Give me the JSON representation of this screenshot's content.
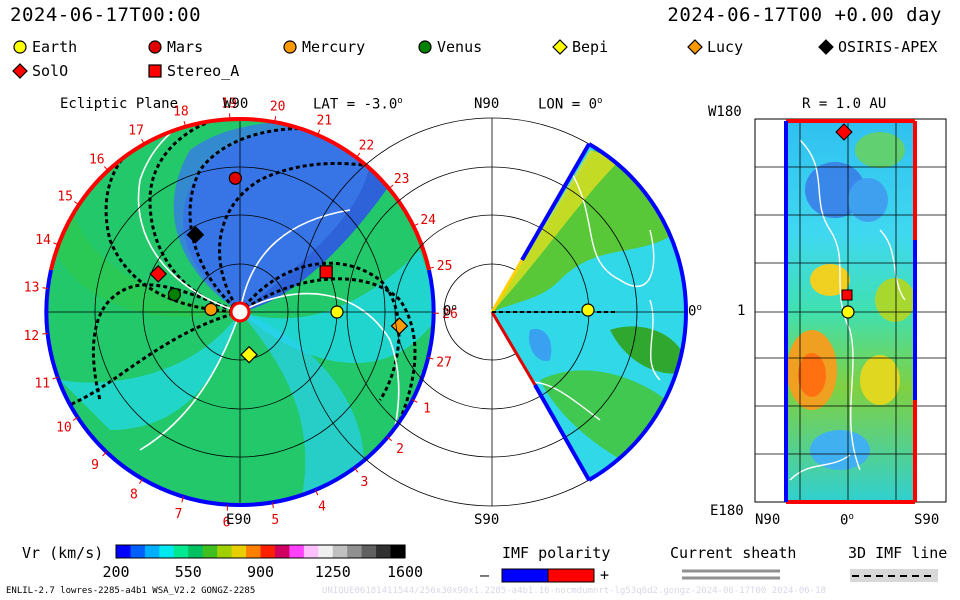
{
  "header": {
    "left_time": "2024-06-17T00:00",
    "right_time": "2024-06-17T00 +0.00 day"
  },
  "legend": {
    "items": [
      {
        "label": "Earth",
        "shape": "circle",
        "color": "#ffff00"
      },
      {
        "label": "Mars",
        "shape": "circle",
        "color": "#e00000"
      },
      {
        "label": "Mercury",
        "shape": "circle",
        "color": "#ff9900"
      },
      {
        "label": "Venus",
        "shape": "circle",
        "color": "#008000"
      },
      {
        "label": "Bepi",
        "shape": "diamond",
        "color": "#ffff00"
      },
      {
        "label": "Lucy",
        "shape": "diamond",
        "color": "#ff9900"
      },
      {
        "label": "OSIRIS-APEX",
        "shape": "diamond",
        "color": "#000000"
      },
      {
        "label": "SolO",
        "shape": "diamond",
        "color": "#ff0000"
      },
      {
        "label": "Stereo_A",
        "shape": "square",
        "color": "#ff0000"
      }
    ]
  },
  "panel_ecliptic": {
    "title": "Ecliptic Plane",
    "top_label": "W90",
    "bottom_label": "E90",
    "lat_label": "LAT = -3.0",
    "lat_degree": "o",
    "right_label": "0",
    "right_degree": "o"
  },
  "panel_meridional": {
    "top_label": "N90",
    "bottom_label": "S90",
    "lon_label": "LON = 0",
    "lon_degree": "o",
    "right_label": "0",
    "right_degree": "o"
  },
  "panel_latlon": {
    "r_label": "R = 1.0 AU",
    "top_left": "W180",
    "bottom_left": "E180",
    "mid_left": "1",
    "x_left": "N90",
    "x_mid": "0",
    "x_mid_degree": "o",
    "x_right": "S90"
  },
  "colorbar": {
    "label": "Vr (km/s)",
    "ticks": [
      "200",
      "550",
      "900",
      "1250",
      "1600"
    ],
    "colors": [
      "#0000ff",
      "#0060ff",
      "#00b0ff",
      "#00e8f0",
      "#00e890",
      "#00c060",
      "#40c020",
      "#a0d000",
      "#e8d000",
      "#ff8000",
      "#ff2000",
      "#d00060",
      "#ff40ff",
      "#ffc0ff",
      "#f0f0f0",
      "#c0c0c0",
      "#909090",
      "#606060",
      "#303030",
      "#000000"
    ]
  },
  "imf_legend": {
    "label": "IMF polarity",
    "minus": "–",
    "plus": "+",
    "neg_color": "#0000ff",
    "pos_color": "#ff0000"
  },
  "sheath_legend": {
    "label": "Current sheath"
  },
  "imfline_legend": {
    "label": "3D IMF line"
  },
  "footer": {
    "left": "ENLIL-2.7 lowres-2285-a4b1 WSA_V2.2 GONGZ-2285",
    "right": "UNIQUE06181411544/256x30x90x1.2285-a4b1.16-nocmdumnrt-lg53q6d2.gongz-2024-06-17T00 2024-06-18"
  },
  "chart_data": {
    "type": "heatmap",
    "quantity": "Vr (km/s)",
    "colorbar_range": [
      200,
      1600
    ],
    "carrington_rotation_ticks": [
      "19",
      "20",
      "21",
      "22",
      "23",
      "24",
      "25",
      "26",
      "27",
      "1",
      "2",
      "3",
      "4",
      "5",
      "6",
      "7",
      "8",
      "9",
      "10",
      "11",
      "12",
      "13",
      "14",
      "15",
      "16",
      "17",
      "18"
    ],
    "bodies_ecliptic": [
      {
        "name": "Earth",
        "angle_deg": 0,
        "r_au": 1.0
      },
      {
        "name": "Mars",
        "angle_deg": 92,
        "r_au": 1.38
      },
      {
        "name": "Mercury",
        "angle_deg": 175,
        "r_au": 0.3
      },
      {
        "name": "Venus",
        "angle_deg": 165,
        "r_au": 0.7
      },
      {
        "name": "Bepi",
        "angle_deg": 282,
        "r_au": 0.45
      },
      {
        "name": "Lucy",
        "angle_deg": -5,
        "r_au": 1.65
      },
      {
        "name": "OSIRIS-APEX",
        "angle_deg": 120,
        "r_au": 0.92
      },
      {
        "name": "SolO",
        "angle_deg": 155,
        "r_au": 0.93
      },
      {
        "name": "Stereo_A",
        "angle_deg": 25,
        "r_au": 0.98
      }
    ]
  }
}
